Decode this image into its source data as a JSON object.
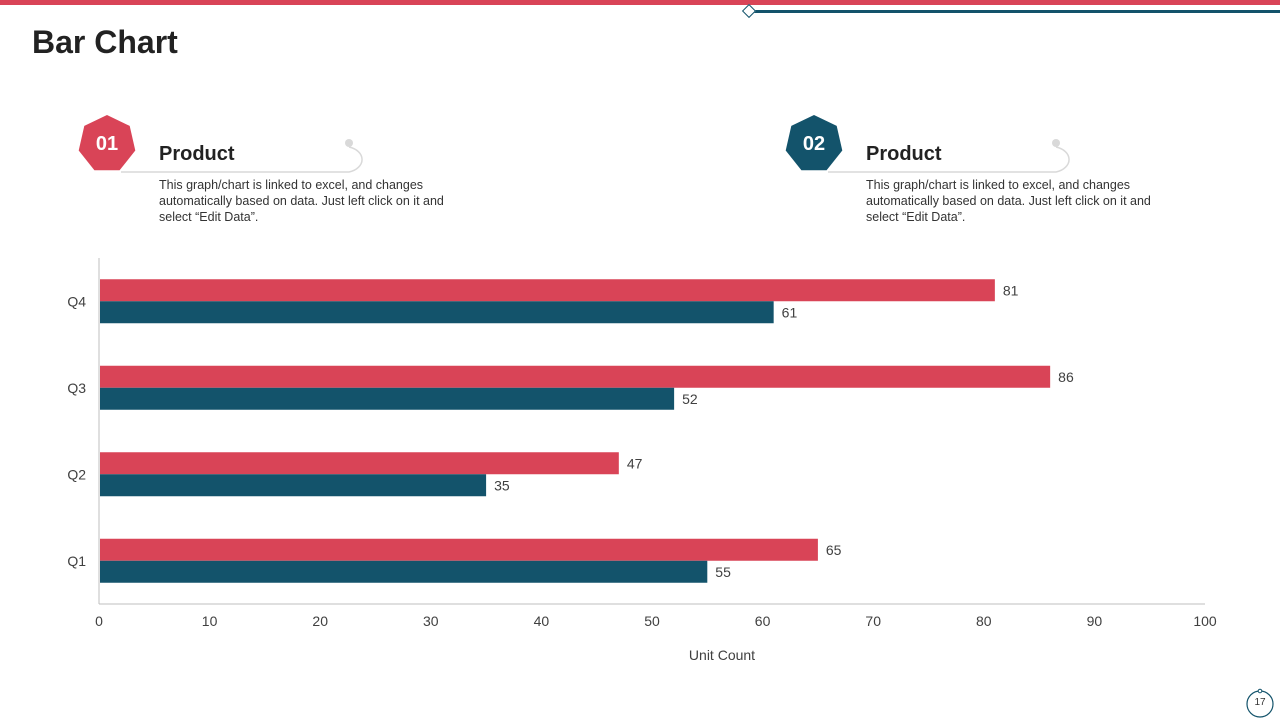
{
  "page": {
    "title": "Bar Chart",
    "page_number": "17",
    "colors": {
      "red": "#d94457",
      "teal": "#13536b"
    }
  },
  "products": [
    {
      "number": "01",
      "title": "Product",
      "description": "This graph/chart is linked to excel, and changes automatically based on data. Just left click on it and select “Edit Data”.",
      "color": "#d94457"
    },
    {
      "number": "02",
      "title": "Product",
      "description": "This graph/chart is linked to excel, and changes automatically based on data. Just left click on it and select “Edit Data”.",
      "color": "#13536b"
    }
  ],
  "chart_data": {
    "type": "bar",
    "orientation": "horizontal",
    "categories": [
      "Q1",
      "Q2",
      "Q3",
      "Q4"
    ],
    "series": [
      {
        "name": "Product 01",
        "color": "#d94457",
        "values": [
          65,
          47,
          86,
          81
        ]
      },
      {
        "name": "Product 02",
        "color": "#13536b",
        "values": [
          55,
          35,
          52,
          61
        ]
      }
    ],
    "xlabel": "Unit Count",
    "ylabel": "",
    "xlim": [
      0,
      100
    ],
    "xticks": [
      0,
      10,
      20,
      30,
      40,
      50,
      60,
      70,
      80,
      90,
      100
    ],
    "grid": false,
    "data_labels": true
  }
}
